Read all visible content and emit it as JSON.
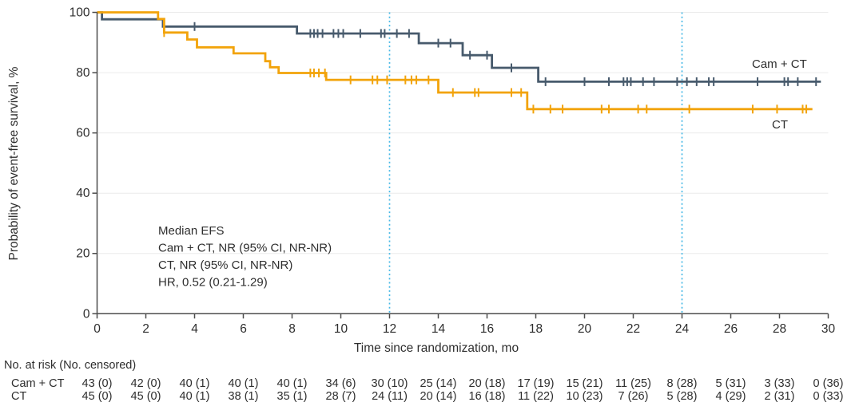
{
  "chart_data": {
    "type": "line",
    "subtype": "kaplan-meier-step",
    "title": "",
    "xlabel": "Time since randomization, mo",
    "ylabel": "Probability of event-free survival, %",
    "xlim": [
      0,
      30
    ],
    "ylim": [
      0,
      100
    ],
    "grid": true,
    "legend_position": "inline-labels",
    "x_axis": {
      "title": "Time since randomization, mo",
      "ticks": [
        0,
        2,
        4,
        6,
        8,
        10,
        12,
        14,
        16,
        18,
        20,
        22,
        24,
        26,
        28,
        30
      ]
    },
    "y_axis": {
      "title": "Probability of event-free survival, %",
      "ticks": [
        0,
        20,
        40,
        60,
        80,
        100
      ]
    },
    "reference_lines_mo": [
      12,
      24
    ],
    "colors": {
      "camct": "#475A6C",
      "ct": "#F2A30A",
      "reference": "#45B8E6",
      "grid": "#ECECEC",
      "axis": "#4D4D4D",
      "text": "#2E2E2E"
    },
    "annotation": {
      "lines": [
        "Median EFS",
        "Cam + CT, NR (95% CI, NR-NR)",
        "CT, NR (95% CI, NR-NR)",
        "HR, 0.52 (0.21-1.29)"
      ]
    },
    "series": [
      {
        "id": "camct",
        "name": "Cam + CT",
        "color": "#475A6C",
        "steps": [
          [
            0,
            100
          ],
          [
            0.2,
            97.7
          ],
          [
            2.7,
            95.3
          ],
          [
            8.2,
            93.0
          ],
          [
            13.2,
            89.8
          ],
          [
            15.0,
            85.8
          ],
          [
            16.2,
            81.6
          ],
          [
            18.1,
            77.0
          ]
        ],
        "end": 29.7,
        "censors": [
          [
            4.0,
            95.3
          ],
          [
            8.75,
            93.0
          ],
          [
            8.9,
            93.0
          ],
          [
            9.05,
            93.0
          ],
          [
            9.25,
            93.0
          ],
          [
            9.7,
            93.0
          ],
          [
            9.9,
            93.0
          ],
          [
            10.1,
            93.0
          ],
          [
            10.8,
            93.0
          ],
          [
            11.65,
            93.0
          ],
          [
            11.8,
            93.0
          ],
          [
            12.3,
            93.0
          ],
          [
            12.8,
            93.0
          ],
          [
            14.0,
            89.8
          ],
          [
            14.5,
            89.8
          ],
          [
            15.3,
            85.8
          ],
          [
            16.0,
            85.8
          ],
          [
            17.0,
            81.6
          ],
          [
            18.4,
            77.0
          ],
          [
            20.0,
            77.0
          ],
          [
            21.0,
            77.0
          ],
          [
            21.6,
            77.0
          ],
          [
            21.75,
            77.0
          ],
          [
            21.9,
            77.0
          ],
          [
            22.4,
            77.0
          ],
          [
            22.85,
            77.0
          ],
          [
            23.8,
            77.0
          ],
          [
            24.2,
            77.0
          ],
          [
            24.6,
            77.0
          ],
          [
            25.1,
            77.0
          ],
          [
            25.3,
            77.0
          ],
          [
            27.1,
            77.0
          ],
          [
            28.2,
            77.0
          ],
          [
            28.35,
            77.0
          ],
          [
            28.75,
            77.0
          ],
          [
            29.5,
            77.0
          ]
        ]
      },
      {
        "id": "ct",
        "name": "CT",
        "color": "#F2A30A",
        "steps": [
          [
            0,
            100
          ],
          [
            2.5,
            97.8
          ],
          [
            2.75,
            93.3
          ],
          [
            3.7,
            91.0
          ],
          [
            4.1,
            88.4
          ],
          [
            5.6,
            86.4
          ],
          [
            6.9,
            83.8
          ],
          [
            7.1,
            81.8
          ],
          [
            7.45,
            79.9
          ],
          [
            9.4,
            77.6
          ],
          [
            14.0,
            73.4
          ],
          [
            17.65,
            67.9
          ]
        ],
        "end": 29.35,
        "censors": [
          [
            2.75,
            93.3
          ],
          [
            8.75,
            79.9
          ],
          [
            8.9,
            79.9
          ],
          [
            9.1,
            79.9
          ],
          [
            9.35,
            79.9
          ],
          [
            10.4,
            77.6
          ],
          [
            11.3,
            77.6
          ],
          [
            11.5,
            77.6
          ],
          [
            11.9,
            77.6
          ],
          [
            12.65,
            77.6
          ],
          [
            12.9,
            77.6
          ],
          [
            13.1,
            77.6
          ],
          [
            13.6,
            77.6
          ],
          [
            14.6,
            73.4
          ],
          [
            15.5,
            73.4
          ],
          [
            15.65,
            73.4
          ],
          [
            17.0,
            73.4
          ],
          [
            17.4,
            73.4
          ],
          [
            17.9,
            67.9
          ],
          [
            18.6,
            67.9
          ],
          [
            19.1,
            67.9
          ],
          [
            20.7,
            67.9
          ],
          [
            21.0,
            67.9
          ],
          [
            22.2,
            67.9
          ],
          [
            22.55,
            67.9
          ],
          [
            24.3,
            67.9
          ],
          [
            26.9,
            67.9
          ],
          [
            27.9,
            67.9
          ],
          [
            28.95,
            67.9
          ],
          [
            29.1,
            67.9
          ]
        ]
      }
    ]
  },
  "risk_table": {
    "header": "No. at risk (No. censored)",
    "times": [
      0,
      2,
      4,
      6,
      8,
      10,
      12,
      14,
      16,
      18,
      20,
      22,
      24,
      26,
      28,
      30
    ],
    "rows": [
      {
        "label": "Cam + CT",
        "values": [
          "43 (0)",
          "42 (0)",
          "40 (1)",
          "40 (1)",
          "40 (1)",
          "34 (6)",
          "30 (10)",
          "25 (14)",
          "20 (18)",
          "17 (19)",
          "15 (21)",
          "11 (25)",
          "8 (28)",
          "5 (31)",
          "3 (33)",
          "0 (36)"
        ]
      },
      {
        "label": "CT",
        "values": [
          "45 (0)",
          "45 (0)",
          "40 (1)",
          "38 (1)",
          "35 (1)",
          "28 (7)",
          "24 (11)",
          "20 (14)",
          "16 (18)",
          "11 (22)",
          "10 (23)",
          "7 (26)",
          "5 (28)",
          "4 (29)",
          "2 (31)",
          "0 (33)"
        ]
      }
    ]
  }
}
